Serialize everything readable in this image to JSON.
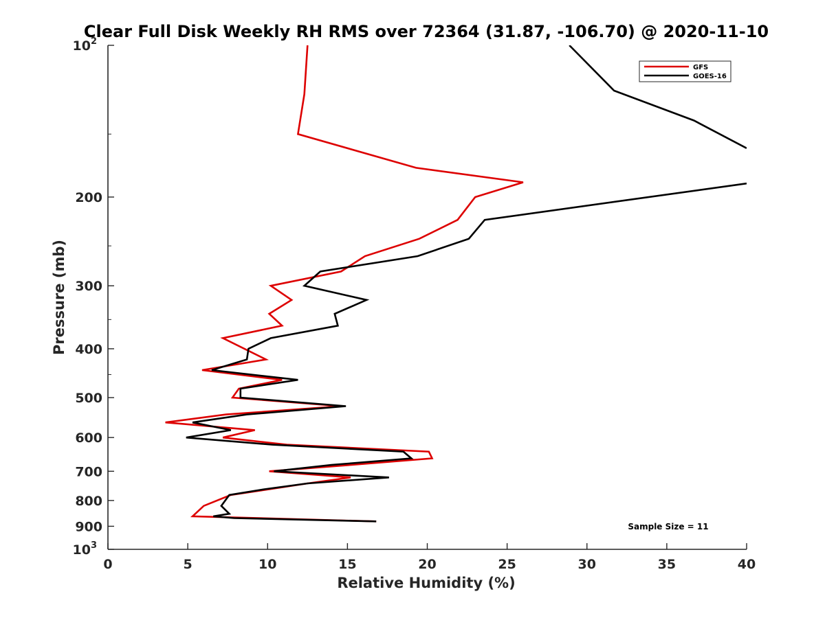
{
  "chart_data": {
    "type": "line",
    "title": "Clear Full Disk Weekly RH RMS over 72364 (31.87, -106.70) @ 2020-11-10",
    "xlabel": "Relative Humidity (%)",
    "ylabel": "Pressure (mb)",
    "xlim": [
      0,
      40
    ],
    "ylim": [
      100,
      1000
    ],
    "y_scale": "log",
    "y_reversed": true,
    "grid": false,
    "legend_position": "top-right",
    "x_ticks": [
      "0",
      "5",
      "10",
      "15",
      "20",
      "25",
      "30",
      "35",
      "40"
    ],
    "y_ticks": [
      {
        "value": 100,
        "label": "10",
        "sup": "2"
      },
      {
        "value": 200,
        "label": "200"
      },
      {
        "value": 300,
        "label": "300"
      },
      {
        "value": 400,
        "label": "400"
      },
      {
        "value": 500,
        "label": "500"
      },
      {
        "value": 600,
        "label": "600"
      },
      {
        "value": 700,
        "label": "700"
      },
      {
        "value": 800,
        "label": "800"
      },
      {
        "value": 900,
        "label": "900"
      },
      {
        "value": 1000,
        "label": "10",
        "sup": "3"
      }
    ],
    "annotation": "Sample Size = 11",
    "series": [
      {
        "name": "GFS",
        "color": "#dd0000",
        "points": [
          [
            12.5,
            100
          ],
          [
            12.3,
            125
          ],
          [
            11.9,
            150
          ],
          [
            19.3,
            175
          ],
          [
            26.0,
            187
          ],
          [
            23.0,
            200
          ],
          [
            21.9,
            222
          ],
          [
            19.5,
            242
          ],
          [
            16.1,
            262
          ],
          [
            14.6,
            281
          ],
          [
            10.2,
            300
          ],
          [
            11.5,
            320
          ],
          [
            10.1,
            341
          ],
          [
            10.9,
            360
          ],
          [
            7.2,
            381
          ],
          [
            9.9,
            420
          ],
          [
            5.9,
            441
          ],
          [
            10.9,
            461
          ],
          [
            8.2,
            480
          ],
          [
            7.8,
            500
          ],
          [
            14.6,
            520
          ],
          [
            7.4,
            540
          ],
          [
            3.6,
            560
          ],
          [
            9.2,
            580
          ],
          [
            7.2,
            600
          ],
          [
            11.2,
            620
          ],
          [
            20.1,
            640
          ],
          [
            20.3,
            660
          ],
          [
            15.2,
            680
          ],
          [
            10.1,
            700
          ],
          [
            15.2,
            720
          ],
          [
            12.5,
            740
          ],
          [
            10.1,
            760
          ],
          [
            7.7,
            780
          ],
          [
            6.0,
            820
          ],
          [
            5.3,
            860
          ],
          [
            16.8,
            880
          ]
        ]
      },
      {
        "name": "GOES-16",
        "color": "#000000",
        "points": [
          [
            28.9,
            100
          ],
          [
            31.7,
            123
          ],
          [
            36.7,
            141
          ],
          [
            40.0,
            160
          ],
          [
            null,
            170
          ],
          [
            40.0,
            188
          ],
          [
            23.6,
            222
          ],
          [
            22.6,
            242
          ],
          [
            19.4,
            262
          ],
          [
            13.3,
            281
          ],
          [
            12.3,
            300
          ],
          [
            16.2,
            320
          ],
          [
            14.2,
            341
          ],
          [
            14.4,
            360
          ],
          [
            10.2,
            381
          ],
          [
            8.8,
            400
          ],
          [
            8.7,
            420
          ],
          [
            6.5,
            441
          ],
          [
            11.9,
            461
          ],
          [
            8.3,
            480
          ],
          [
            8.3,
            500
          ],
          [
            14.9,
            520
          ],
          [
            8.7,
            540
          ],
          [
            5.3,
            560
          ],
          [
            7.7,
            580
          ],
          [
            4.9,
            600
          ],
          [
            10.3,
            620
          ],
          [
            18.5,
            640
          ],
          [
            19.0,
            660
          ],
          [
            14.0,
            680
          ],
          [
            10.4,
            700
          ],
          [
            17.6,
            720
          ],
          [
            12.5,
            740
          ],
          [
            9.8,
            760
          ],
          [
            7.6,
            780
          ],
          [
            7.1,
            820
          ],
          [
            7.6,
            850
          ],
          [
            6.6,
            860
          ],
          [
            7.9,
            867
          ],
          [
            16.8,
            880
          ]
        ]
      }
    ]
  }
}
